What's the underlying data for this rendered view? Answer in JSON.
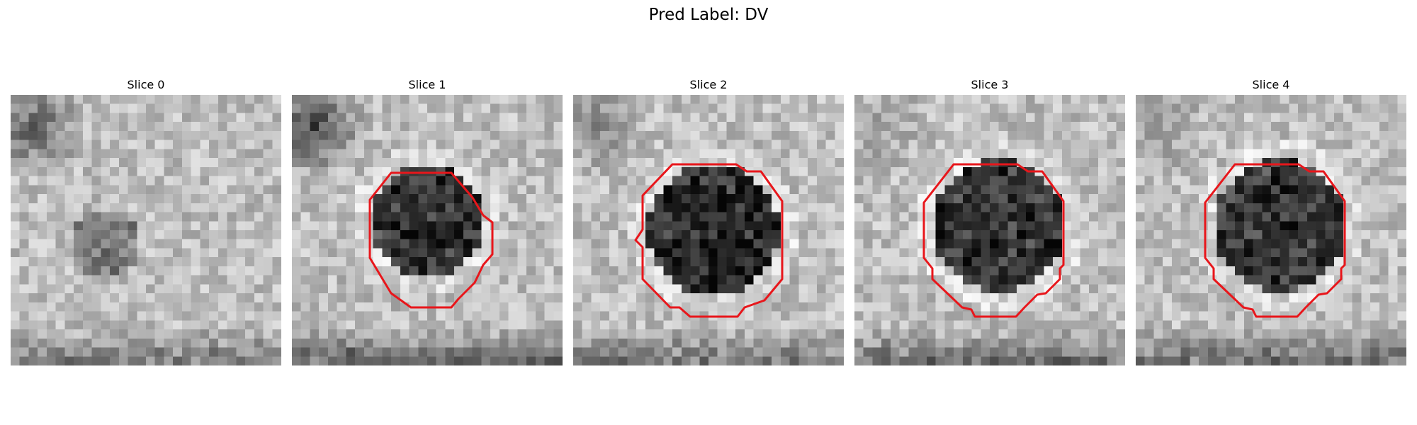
{
  "title": "Pred Label: DV",
  "slices": [
    {
      "label": "Slice 0",
      "has_contour": false
    },
    {
      "label": "Slice 1",
      "has_contour": true
    },
    {
      "label": "Slice 2",
      "has_contour": true
    },
    {
      "label": "Slice 3",
      "has_contour": true
    },
    {
      "label": "Slice 4",
      "has_contour": true
    }
  ],
  "colors": {
    "contour": "#e8161b",
    "background": "#ffffff"
  }
}
